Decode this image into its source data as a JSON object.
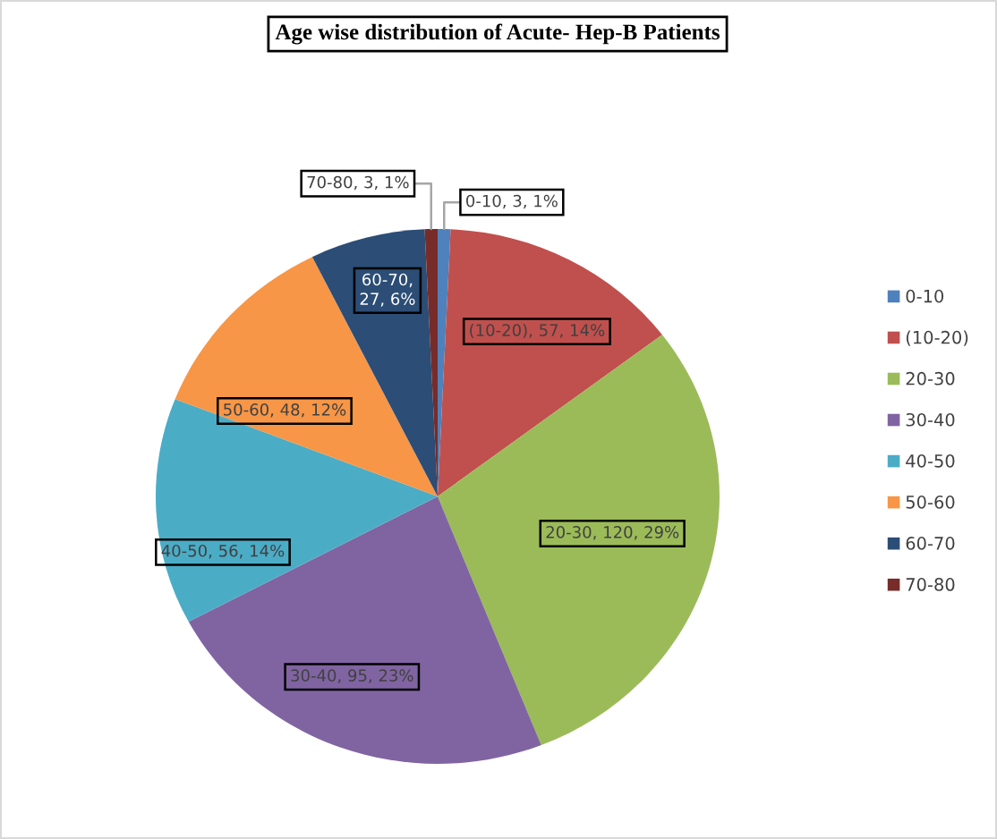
{
  "chart_data": {
    "type": "pie",
    "title": "Age wise distribution of Acute- Hep-B Patients",
    "categories": [
      "0-10",
      "(10-20)",
      "20-30",
      "30-40",
      "40-50",
      "50-60",
      "60-70",
      "70-80"
    ],
    "values": [
      3,
      57,
      120,
      95,
      56,
      48,
      27,
      3
    ],
    "colors": [
      "#4f81bd",
      "#c0504d",
      "#9bbb59",
      "#8064a2",
      "#4bacc6",
      "#f79646",
      "#2c4d75",
      "#772c2a"
    ],
    "value_labels": [
      "0-10, 3, 1%",
      "(10-20), 57, 14%",
      "20-30, 120, 29%",
      "30-40, 95, 23%",
      "40-50, 56, 14%",
      "50-60, 48, 12%",
      "60-70, 27, 6%",
      "70-80, 3, 1%"
    ],
    "legend": "right"
  }
}
